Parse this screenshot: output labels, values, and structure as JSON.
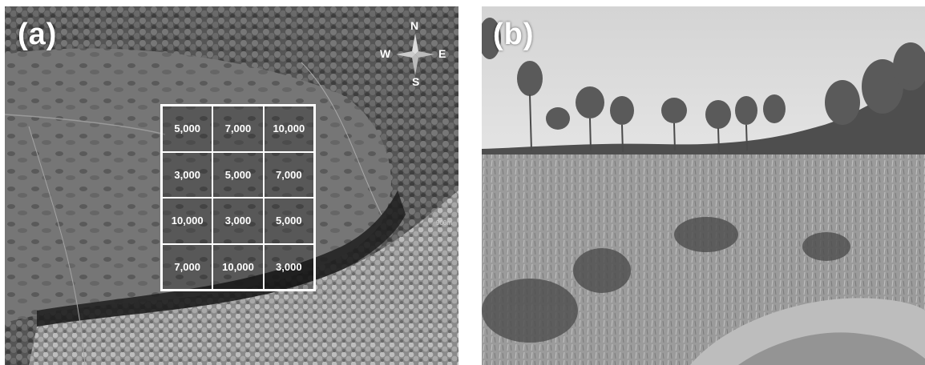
{
  "panel_a": {
    "label": "(a)",
    "compass": {
      "north": "N",
      "south": "S",
      "east": "E",
      "west": "W"
    },
    "scale_mark": "900m",
    "plot_grid": [
      [
        "5,000",
        "7,000",
        "10,000"
      ],
      [
        "3,000",
        "5,000",
        "7,000"
      ],
      [
        "10,000",
        "3,000",
        "5,000"
      ],
      [
        "7,000",
        "10,000",
        "3,000"
      ]
    ]
  },
  "panel_b": {
    "label": "(b)"
  },
  "colors": {
    "background": "#ffffff",
    "overlay_text": "#ffffff",
    "aerial_forest": "#4a4a4a",
    "aerial_clearing": "#7a7a7a",
    "sky": "#d9d9d9",
    "meadow": "#a0a0a0"
  }
}
